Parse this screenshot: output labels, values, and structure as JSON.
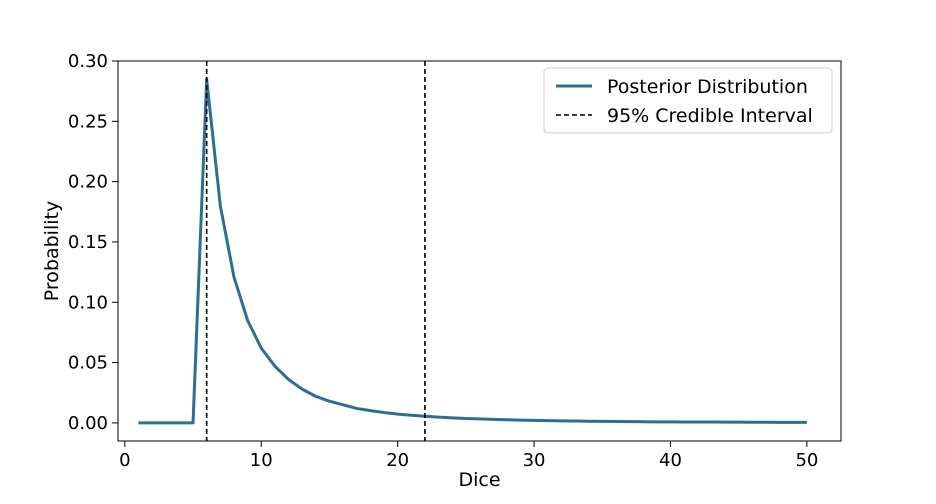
{
  "chart_data": {
    "type": "line",
    "title": "",
    "xlabel": "Dice",
    "ylabel": "Probability",
    "xlim": [
      -0.5,
      52.5
    ],
    "ylim": [
      -0.015,
      0.3
    ],
    "xticks": [
      0,
      10,
      20,
      30,
      40,
      50
    ],
    "xtick_labels": [
      "0",
      "10",
      "20",
      "30",
      "40",
      "50"
    ],
    "yticks": [
      0.0,
      0.05,
      0.1,
      0.15,
      0.2,
      0.25,
      0.3
    ],
    "ytick_labels": [
      "0.00",
      "0.05",
      "0.10",
      "0.15",
      "0.20",
      "0.25",
      "0.30"
    ],
    "grid": false,
    "legend_position": "top-right",
    "series": [
      {
        "name": "Posterior Distribution",
        "color": "#2e6e96",
        "x": [
          1,
          2,
          3,
          4,
          5,
          6,
          7,
          8,
          9,
          10,
          11,
          12,
          13,
          14,
          15,
          16,
          17,
          18,
          19,
          20,
          21,
          22,
          23,
          24,
          25,
          26,
          27,
          28,
          29,
          30,
          31,
          32,
          33,
          34,
          35,
          36,
          37,
          38,
          39,
          40,
          41,
          42,
          43,
          44,
          45,
          46,
          47,
          48,
          49,
          50
        ],
        "y": [
          0,
          0,
          0,
          0,
          0,
          0.285,
          0.18,
          0.121,
          0.085,
          0.062,
          0.047,
          0.036,
          0.028,
          0.022,
          0.018,
          0.015,
          0.012,
          0.0102,
          0.0086,
          0.0073,
          0.0063,
          0.0055,
          0.0048,
          0.0042,
          0.0037,
          0.0033,
          0.0029,
          0.0026,
          0.0023,
          0.0021,
          0.0019,
          0.0017,
          0.0016,
          0.0014,
          0.0013,
          0.0012,
          0.0011,
          0.001,
          0.0009,
          0.00085,
          0.0008,
          0.00075,
          0.0007,
          0.00065,
          0.0006,
          0.00055,
          0.0005,
          0.00045,
          0.0004,
          0.0004
        ]
      }
    ],
    "vlines": [
      {
        "x": 6,
        "color": "#000000",
        "style": "dashed"
      },
      {
        "x": 22,
        "color": "#000000",
        "style": "dashed"
      }
    ],
    "legend": [
      {
        "label": "Posterior Distribution",
        "kind": "line",
        "color": "#2e6e96"
      },
      {
        "label": "95% Credible Interval",
        "kind": "dashed",
        "color": "#000000"
      }
    ]
  }
}
